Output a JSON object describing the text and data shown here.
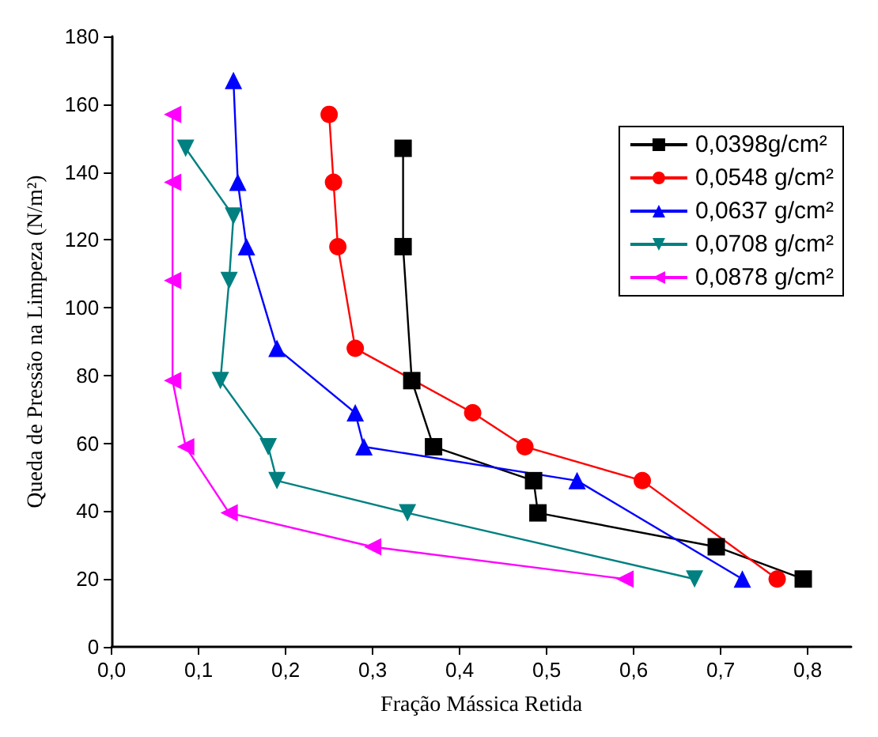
{
  "chart_data": {
    "type": "line",
    "xlabel": "Fração Mássica Retida",
    "ylabel": "Queda de Pressão na Limpeza (N/m²)",
    "xlim": [
      0,
      0.85
    ],
    "ylim": [
      0,
      180
    ],
    "xticks": [
      {
        "value": 0,
        "label": "0,0"
      },
      {
        "value": 0.1,
        "label": "0,1"
      },
      {
        "value": 0.2,
        "label": "0,2"
      },
      {
        "value": 0.3,
        "label": "0,3"
      },
      {
        "value": 0.4,
        "label": "0,4"
      },
      {
        "value": 0.5,
        "label": "0,5"
      },
      {
        "value": 0.6,
        "label": "0,6"
      },
      {
        "value": 0.7,
        "label": "0,7"
      },
      {
        "value": 0.8,
        "label": "0,8"
      }
    ],
    "yticks": [
      0,
      20,
      40,
      60,
      80,
      100,
      120,
      140,
      160,
      180
    ],
    "grid": false,
    "legend": "top right",
    "line_style": "solid",
    "series": [
      {
        "name": "0,0398g/cm²",
        "color": "#000000",
        "marker": "square",
        "x": [
          0.335,
          0.335,
          0.345,
          0.37,
          0.485,
          0.49,
          0.695,
          0.795
        ],
        "values": [
          147,
          118,
          78.5,
          59,
          49,
          39.5,
          29.5,
          20
        ]
      },
      {
        "name": "0,0548 g/cm²",
        "color": "#ff0000",
        "marker": "circle",
        "x": [
          0.25,
          0.255,
          0.26,
          0.28,
          0.415,
          0.475,
          0.61,
          0.765
        ],
        "values": [
          157,
          137,
          118,
          88,
          69,
          59,
          49,
          20
        ]
      },
      {
        "name": "0,0637 g/cm²",
        "color": "#0000ff",
        "marker": "triangle",
        "x": [
          0.14,
          0.145,
          0.155,
          0.19,
          0.28,
          0.29,
          0.535,
          0.725
        ],
        "values": [
          167,
          137,
          118,
          88,
          69,
          59,
          49,
          20
        ]
      },
      {
        "name": "0,0708 g/cm²",
        "color": "#008080",
        "marker": "triangle-down",
        "x": [
          0.085,
          0.14,
          0.135,
          0.125,
          0.18,
          0.19,
          0.34,
          0.67
        ],
        "values": [
          147,
          127,
          108,
          78.5,
          59,
          49,
          39.5,
          20
        ]
      },
      {
        "name": "0,0878 g/cm²",
        "color": "#ff00ff",
        "marker": "triangle-left",
        "x": [
          0.07,
          0.07,
          0.07,
          0.07,
          0.085,
          0.135,
          0.3,
          0.59
        ],
        "values": [
          157,
          137,
          108,
          78.5,
          59,
          39.5,
          29.5,
          20
        ]
      }
    ]
  }
}
